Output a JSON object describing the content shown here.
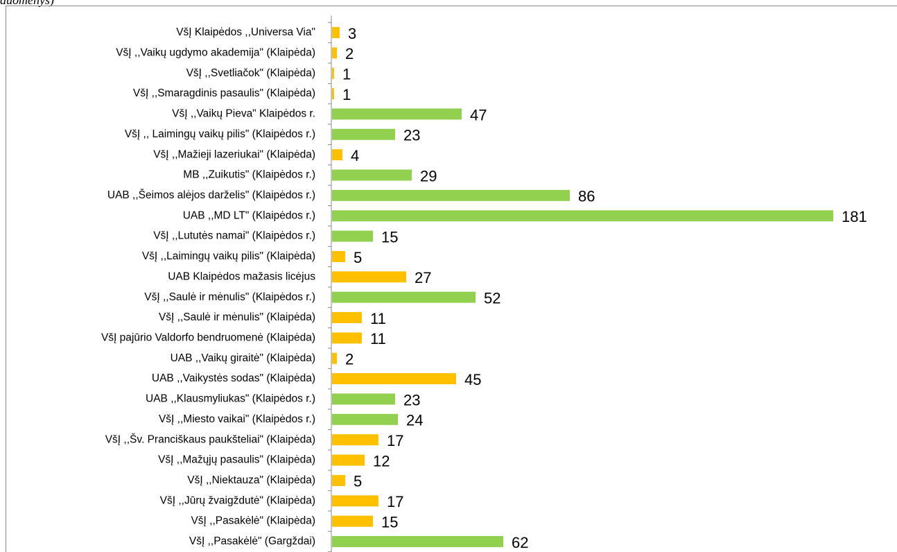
{
  "chart_data": {
    "type": "bar",
    "orientation": "horizontal",
    "title": "duomenys)",
    "categories": [
      "VšĮ Klaipėdos ,,Universa Via\"",
      "VšĮ ,,Vaikų ugdymo akademija\" (Klaipėda)",
      "VšĮ ,,Svetliačok\" (Klaipėda)",
      "VšĮ ,,Smaragdinis pasaulis\" (Klaipėda)",
      "VšĮ ,,Vaikų Pieva\" Klaipėdos r.",
      "VšĮ ,, Laimingų vaikų pilis\" (Klaipėdos r.)",
      "VšĮ ,,Mažieji lazeriukai\" (Klaipėda)",
      "MB ,,Zuikutis\" (Klaipėdos r.)",
      "UAB ,,Šeimos alėjos darželis\" (Klaipėdos r.)",
      "UAB ,,MD LT\" (Klaipėdos r.)",
      "VšĮ ,,Lututės namai\" (Klaipėdos r.)",
      "VšĮ ,,Laimingų vaikų pilis\" (Klaipėda)",
      "UAB Klaipėdos mažasis licėjus",
      "VšĮ ,,Saulė ir mėnulis\" (Klaipėdos r.)",
      "VšĮ ,,Saulė ir mėnulis\" (Klaipėda)",
      "VšĮ pajūrio Valdorfo bendruomenė (Klaipėda)",
      "UAB ,,Vaikų giraitė\" (Klaipėda)",
      "UAB ,,Vaikystės sodas\" (Klaipėda)",
      "UAB ,,Klausmyliukas\" (Klaipėdos r.)",
      "VšĮ ,,Miesto vaikai\" (Klaipėdos r.)",
      "VšĮ ,,Šv. Pranciškaus paukšteliai\" (Klaipėda)",
      "VšĮ ,,Mažųjų pasaulis\"  (Klaipėda)",
      "VšĮ ,,Niektauza\"  (Klaipėda)",
      "VšĮ ,,Jūrų žvaigždutė\" (Klaipėda)",
      "VšĮ ,,Pasakėlė\" (Klaipėda)",
      "VšĮ ,,Pasakėlė\" (Gargždai)"
    ],
    "values": [
      3,
      2,
      1,
      1,
      47,
      23,
      4,
      29,
      86,
      181,
      15,
      5,
      27,
      52,
      11,
      11,
      2,
      45,
      23,
      24,
      17,
      12,
      5,
      17,
      15,
      62
    ],
    "colors": [
      "#ffc000",
      "#ffc000",
      "#ffc000",
      "#ffc000",
      "#92d050",
      "#92d050",
      "#ffc000",
      "#92d050",
      "#92d050",
      "#92d050",
      "#92d050",
      "#ffc000",
      "#ffc000",
      "#92d050",
      "#ffc000",
      "#ffc000",
      "#ffc000",
      "#ffc000",
      "#92d050",
      "#92d050",
      "#ffc000",
      "#ffc000",
      "#ffc000",
      "#ffc000",
      "#ffc000",
      "#92d050"
    ]
  }
}
